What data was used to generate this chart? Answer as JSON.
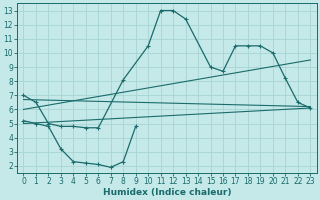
{
  "xlabel": "Humidex (Indice chaleur)",
  "bg_color": "#c5e8e8",
  "line_color": "#1a6b6b",
  "grid_color": "#a8d4d4",
  "xlim": [
    -0.5,
    23.5
  ],
  "ylim": [
    1.5,
    13.5
  ],
  "xticks": [
    0,
    1,
    2,
    3,
    4,
    5,
    6,
    7,
    8,
    9,
    10,
    11,
    12,
    13,
    14,
    15,
    16,
    17,
    18,
    19,
    20,
    21,
    22,
    23
  ],
  "yticks": [
    2,
    3,
    4,
    5,
    6,
    7,
    8,
    9,
    10,
    11,
    12,
    13
  ],
  "curve1_x": [
    0,
    1,
    2,
    3,
    4,
    5,
    6,
    8,
    10,
    11,
    12,
    13,
    15,
    16,
    17,
    18,
    19,
    20,
    21,
    22,
    23
  ],
  "curve1_y": [
    7.0,
    6.5,
    5.0,
    4.8,
    4.8,
    4.7,
    4.7,
    8.1,
    10.5,
    13.0,
    13.0,
    12.4,
    9.0,
    8.7,
    10.5,
    10.5,
    10.5,
    10.0,
    8.2,
    6.5,
    6.1
  ],
  "curve2_x": [
    0,
    1,
    2,
    3,
    4,
    5,
    6,
    7,
    8,
    9
  ],
  "curve2_y": [
    5.2,
    5.0,
    4.8,
    3.2,
    2.3,
    2.2,
    2.1,
    1.9,
    2.3,
    4.8
  ],
  "line1_x": [
    0,
    23
  ],
  "line1_y": [
    6.0,
    9.5
  ],
  "line2_x": [
    0,
    23
  ],
  "line2_y": [
    5.0,
    6.1
  ],
  "line3_x": [
    0,
    23
  ],
  "line3_y": [
    6.7,
    6.2
  ],
  "xlabel_fontsize": 6.5,
  "tick_fontsize": 5.5
}
